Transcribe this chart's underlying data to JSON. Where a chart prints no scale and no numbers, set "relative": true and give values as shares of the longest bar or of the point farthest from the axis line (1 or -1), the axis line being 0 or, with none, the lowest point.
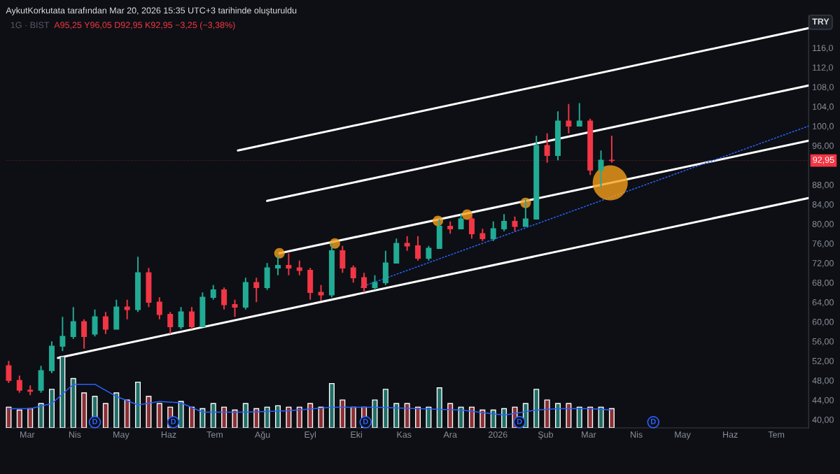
{
  "chart_data": [
    {
      "type": "candlestick",
      "title": "1G · BIST",
      "subtitle": "A95,25 Y96,05 D92,95 K92,95 −3,25 (−3,38%)",
      "annotations": [
        "AykutKorkutata tarafından Mar 20, 2026 15:35 UTC+3 tarihinde oluşturuldu",
        "TRY"
      ],
      "x": [
        "2025-02-17",
        "2025-02-24",
        "2025-03-03",
        "2025-03-10",
        "2025-03-17",
        "2025-03-24",
        "2025-03-31",
        "2025-04-07",
        "2025-04-14",
        "2025-04-21",
        "2025-04-28",
        "2025-05-05",
        "2025-05-12",
        "2025-05-19",
        "2025-05-26",
        "2025-06-02",
        "2025-06-09",
        "2025-06-16",
        "2025-06-23",
        "2025-06-30",
        "2025-07-07",
        "2025-07-14",
        "2025-07-21",
        "2025-07-28",
        "2025-08-04",
        "2025-08-11",
        "2025-08-18",
        "2025-08-25",
        "2025-09-01",
        "2025-09-08",
        "2025-09-15",
        "2025-09-22",
        "2025-09-29",
        "2025-10-06",
        "2025-10-13",
        "2025-10-20",
        "2025-10-27",
        "2025-11-03",
        "2025-11-10",
        "2025-11-17",
        "2025-11-24",
        "2025-12-01",
        "2025-12-08",
        "2025-12-15",
        "2025-12-22",
        "2025-12-29",
        "2026-01-05",
        "2026-01-12",
        "2026-01-19",
        "2026-01-26",
        "2026-02-02",
        "2026-02-09",
        "2026-02-16",
        "2026-02-23",
        "2026-03-02",
        "2026-03-09",
        "2026-03-16"
      ],
      "ohlc": [
        [
          51,
          52,
          47.5,
          48
        ],
        [
          48,
          49,
          45.5,
          46
        ],
        [
          46,
          47,
          45,
          45.8
        ],
        [
          46,
          51,
          45.5,
          50
        ],
        [
          50,
          56,
          49.5,
          55
        ],
        [
          55,
          61,
          54,
          57
        ],
        [
          57,
          63,
          56.5,
          60
        ],
        [
          60,
          60.5,
          54.5,
          57
        ],
        [
          57.5,
          62.5,
          57,
          61
        ],
        [
          61,
          62,
          57.5,
          58.5
        ],
        [
          58.5,
          64.5,
          58.5,
          63
        ],
        [
          63,
          64.5,
          60.5,
          62.5
        ],
        [
          62.5,
          73.3,
          62,
          70
        ],
        [
          70,
          71,
          63,
          64
        ],
        [
          64,
          65,
          60.5,
          61.5
        ],
        [
          61.5,
          62,
          57.5,
          59
        ],
        [
          59,
          63,
          58.5,
          62
        ],
        [
          62,
          63,
          58.5,
          59
        ],
        [
          59,
          66,
          59,
          65
        ],
        [
          65,
          67.5,
          64.5,
          66.5
        ],
        [
          66.5,
          67,
          62.5,
          63.5
        ],
        [
          63.5,
          64.5,
          61,
          63
        ],
        [
          63,
          69,
          62.5,
          68
        ],
        [
          68,
          69,
          64,
          67
        ],
        [
          67,
          72,
          66.5,
          71
        ],
        [
          71,
          73.5,
          69.5,
          71.5
        ],
        [
          71.5,
          74,
          69.5,
          71
        ],
        [
          71,
          72.5,
          69.5,
          70.5
        ],
        [
          70.5,
          71,
          64.5,
          66
        ],
        [
          66,
          67.5,
          64.3,
          65.5
        ],
        [
          65.5,
          76,
          65,
          74.5
        ],
        [
          74.5,
          75.5,
          70,
          71
        ],
        [
          71,
          71.5,
          68,
          69
        ],
        [
          69,
          70,
          66,
          67
        ],
        [
          67,
          69.5,
          66.5,
          68
        ],
        [
          68,
          74.5,
          67.5,
          72
        ],
        [
          72,
          77,
          72,
          76
        ],
        [
          76,
          77.5,
          74.5,
          75.5
        ],
        [
          75.5,
          77.5,
          72.5,
          73
        ],
        [
          73,
          75.5,
          72.5,
          75
        ],
        [
          75,
          81,
          75,
          79.5
        ],
        [
          79.5,
          80.5,
          78,
          79
        ],
        [
          79,
          82,
          79,
          81
        ],
        [
          81,
          81.5,
          77,
          78
        ],
        [
          78,
          79,
          76.5,
          77
        ],
        [
          77,
          80.5,
          76.5,
          79
        ],
        [
          79,
          82,
          78.5,
          80.5
        ],
        [
          80.5,
          81.5,
          78.5,
          79.5
        ],
        [
          79.5,
          85,
          79.5,
          81
        ],
        [
          81,
          98,
          81,
          96
        ],
        [
          96,
          98.5,
          92.5,
          94
        ],
        [
          94,
          103,
          93,
          101
        ],
        [
          101,
          104.5,
          98.5,
          100
        ],
        [
          100,
          104.7,
          100,
          101
        ],
        [
          101,
          101.5,
          90,
          91
        ],
        [
          91,
          95,
          87.5,
          93
        ],
        [
          93,
          98,
          92.5,
          92.95
        ]
      ],
      "colors": [
        "#f23645",
        "#f23645",
        "#f23645",
        "#22ab94",
        "#22ab94",
        "#22ab94",
        "#22ab94",
        "#f23645",
        "#22ab94",
        "#f23645",
        "#22ab94",
        "#f23645",
        "#22ab94",
        "#f23645",
        "#f23645",
        "#f23645",
        "#22ab94",
        "#f23645",
        "#22ab94",
        "#22ab94",
        "#f23645",
        "#f23645",
        "#22ab94",
        "#f23645",
        "#22ab94",
        "#22ab94",
        "#f23645",
        "#f23645",
        "#f23645",
        "#f23645",
        "#22ab94",
        "#f23645",
        "#f23645",
        "#f23645",
        "#22ab94",
        "#22ab94",
        "#22ab94",
        "#f23645",
        "#f23645",
        "#22ab94",
        "#22ab94",
        "#f23645",
        "#22ab94",
        "#f23645",
        "#f23645",
        "#22ab94",
        "#22ab94",
        "#f23645",
        "#22ab94",
        "#22ab94",
        "#f23645",
        "#22ab94",
        "#f23645",
        "#22ab94",
        "#f23645",
        "#22ab94",
        "#f23645"
      ],
      "series": [
        {
          "type": "line",
          "color": "#ffffff",
          "line_style": "solid",
          "x": [
            "2025-03-21",
            "2026-07-22"
          ],
          "values": [
            52.6,
            85.3
          ]
        },
        {
          "type": "line",
          "color": "#ffffff",
          "line_style": "solid",
          "x": [
            "2025-08-12",
            "2026-07-22"
          ],
          "values": [
            74.0,
            97.0
          ]
        },
        {
          "type": "line",
          "color": "#ffffff",
          "line_style": "solid",
          "x": [
            "2025-08-04",
            "2026-07-22"
          ],
          "values": [
            84.7,
            108.3
          ]
        },
        {
          "type": "line",
          "color": "#ffffff",
          "line_style": "solid",
          "x": [
            "2025-07-16",
            "2026-07-22"
          ],
          "values": [
            95.0,
            120.0
          ]
        },
        {
          "type": "line",
          "color": "#2962ff",
          "line_style": "dotted",
          "x": [
            "2025-10-04",
            "2026-07-22"
          ],
          "values": [
            67.1,
            100.0
          ]
        },
        {
          "type": "bubble",
          "color": "#f59f1a",
          "x": [
            "2025-08-12",
            "2025-09-17",
            "2025-11-23",
            "2025-12-12",
            "2026-01-19",
            "2026-03-15"
          ],
          "values": [
            74.0,
            76.0,
            80.6,
            81.9,
            84.3,
            88.4
          ],
          "sizes": [
            0.09,
            0.09,
            0.09,
            0.09,
            0.09,
            1
          ]
        }
      ],
      "ref_lines": [
        {
          "axis": "y",
          "value": 92.95,
          "label": "92,95",
          "color": "#f23645",
          "line_style": "dotted"
        }
      ],
      "xlim": [
        "2025-02-15",
        "2026-07-22"
      ],
      "ylim": [
        38.3,
        122.6
      ],
      "yticks": [
        {
          "value": 40,
          "label": "40,00"
        },
        {
          "value": 44,
          "label": "44,00"
        },
        {
          "value": 48,
          "label": "48,00"
        },
        {
          "value": 52,
          "label": "52,00"
        },
        {
          "value": 56,
          "label": "56,00"
        },
        {
          "value": 60,
          "label": "60,00"
        },
        {
          "value": 64,
          "label": "64,00"
        },
        {
          "value": 68,
          "label": "68,00"
        },
        {
          "value": 72,
          "label": "72,00"
        },
        {
          "value": 76,
          "label": "76,00"
        },
        {
          "value": 80,
          "label": "80,00"
        },
        {
          "value": 84,
          "label": "84,00"
        },
        {
          "value": 88,
          "label": "88,00"
        },
        {
          "value": 96,
          "label": "96,00"
        },
        {
          "value": 100,
          "label": "100,0"
        },
        {
          "value": 104,
          "label": "104,0"
        },
        {
          "value": 108,
          "label": "108,0"
        },
        {
          "value": 112,
          "label": "112,0"
        },
        {
          "value": 116,
          "label": "116,0"
        }
      ],
      "tick_labels": "y",
      "grid": false,
      "legend": false
    },
    {
      "type": "bar",
      "relative": true,
      "tick_labels": "x",
      "grid": false,
      "legend": false,
      "x": [
        "2025-02-17",
        "2025-02-24",
        "2025-03-03",
        "2025-03-10",
        "2025-03-17",
        "2025-03-24",
        "2025-03-31",
        "2025-04-07",
        "2025-04-14",
        "2025-04-21",
        "2025-04-28",
        "2025-05-05",
        "2025-05-12",
        "2025-05-19",
        "2025-05-26",
        "2025-06-02",
        "2025-06-09",
        "2025-06-16",
        "2025-06-23",
        "2025-06-30",
        "2025-07-07",
        "2025-07-14",
        "2025-07-21",
        "2025-07-28",
        "2025-08-04",
        "2025-08-11",
        "2025-08-18",
        "2025-08-25",
        "2025-09-01",
        "2025-09-08",
        "2025-09-15",
        "2025-09-22",
        "2025-09-29",
        "2025-10-06",
        "2025-10-13",
        "2025-10-20",
        "2025-10-27",
        "2025-11-03",
        "2025-11-10",
        "2025-11-17",
        "2025-11-24",
        "2025-12-01",
        "2025-12-08",
        "2025-12-15",
        "2025-12-22",
        "2025-12-29",
        "2026-01-05",
        "2026-01-12",
        "2026-01-19",
        "2026-01-26",
        "2026-02-02",
        "2026-02-09",
        "2026-02-16",
        "2026-02-23",
        "2026-03-02",
        "2026-03-09",
        "2026-03-16"
      ],
      "series": [
        {
          "type": "bar",
          "values": [
            0.29,
            0.25,
            0.27,
            0.34,
            0.54,
            1,
            0.69,
            0.49,
            0.44,
            0.34,
            0.49,
            0.39,
            0.64,
            0.44,
            0.34,
            0.29,
            0.37,
            0.29,
            0.27,
            0.34,
            0.29,
            0.25,
            0.34,
            0.27,
            0.29,
            0.31,
            0.29,
            0.29,
            0.34,
            0.29,
            0.62,
            0.39,
            0.29,
            0.29,
            0.39,
            0.54,
            0.34,
            0.34,
            0.29,
            0.29,
            0.56,
            0.34,
            0.29,
            0.29,
            0.25,
            0.25,
            0.27,
            0.29,
            0.34,
            0.54,
            0.39,
            0.34,
            0.34,
            0.29,
            0.29,
            0.29,
            0.27
          ],
          "colors": [
            "#8c2f34",
            "#8c2f34",
            "#8c2f34",
            "#1f6f66",
            "#1f6f66",
            "#1f6f66",
            "#1f6f66",
            "#8c2f34",
            "#1f6f66",
            "#8c2f34",
            "#1f6f66",
            "#8c2f34",
            "#1f6f66",
            "#8c2f34",
            "#8c2f34",
            "#8c2f34",
            "#1f6f66",
            "#8c2f34",
            "#1f6f66",
            "#1f6f66",
            "#8c2f34",
            "#8c2f34",
            "#1f6f66",
            "#8c2f34",
            "#1f6f66",
            "#1f6f66",
            "#8c2f34",
            "#8c2f34",
            "#8c2f34",
            "#8c2f34",
            "#1f6f66",
            "#8c2f34",
            "#8c2f34",
            "#8c2f34",
            "#1f6f66",
            "#1f6f66",
            "#1f6f66",
            "#8c2f34",
            "#8c2f34",
            "#1f6f66",
            "#1f6f66",
            "#8c2f34",
            "#1f6f66",
            "#8c2f34",
            "#8c2f34",
            "#1f6f66",
            "#1f6f66",
            "#8c2f34",
            "#1f6f66",
            "#1f6f66",
            "#8c2f34",
            "#1f6f66",
            "#8c2f34",
            "#1f6f66",
            "#8c2f34",
            "#1f6f66",
            "#8c2f34"
          ]
        },
        {
          "type": "line",
          "color": "#2962ff",
          "x": [
            "2025-02-17",
            "2025-03-03",
            "2025-03-17",
            "2025-03-31",
            "2025-04-14",
            "2025-04-28",
            "2025-05-12",
            "2025-05-26",
            "2025-06-09",
            "2025-06-23",
            "2025-07-21",
            "2025-08-18",
            "2025-09-15",
            "2025-10-13",
            "2025-11-10",
            "2025-12-08",
            "2026-01-05",
            "2026-01-26",
            "2026-02-09",
            "2026-03-02",
            "2026-03-16"
          ],
          "values": [
            0.27,
            0.27,
            0.34,
            0.61,
            0.61,
            0.44,
            0.32,
            0.37,
            0.35,
            0.22,
            0.22,
            0.24,
            0.29,
            0.29,
            0.27,
            0.25,
            0.18,
            0.25,
            0.27,
            0.27,
            0.25
          ]
        }
      ],
      "annotations": [
        {
          "text": "D",
          "x": "2025-04-14",
          "y": 0.08
        },
        {
          "text": "D",
          "x": "2025-06-04",
          "y": 0.08
        },
        {
          "text": "D",
          "x": "2025-10-07",
          "y": 0.08
        },
        {
          "text": "D",
          "x": "2026-01-15",
          "y": 0.08
        },
        {
          "text": "D",
          "x": "2026-04-12",
          "y": 0.08
        }
      ],
      "xlim": [
        "2025-02-15",
        "2026-07-22"
      ],
      "xticks": [
        {
          "value": "2025-03-01",
          "label": "Mar"
        },
        {
          "value": "2025-04-01",
          "label": "Nis"
        },
        {
          "value": "2025-05-01",
          "label": "May"
        },
        {
          "value": "2025-06-01",
          "label": "Haz"
        },
        {
          "value": "2025-07-01",
          "label": "Tem"
        },
        {
          "value": "2025-08-01",
          "label": "Ağu"
        },
        {
          "value": "2025-09-01",
          "label": "Eyl"
        },
        {
          "value": "2025-10-01",
          "label": "Eki"
        },
        {
          "value": "2025-11-01",
          "label": "Kas"
        },
        {
          "value": "2025-12-01",
          "label": "Ara"
        },
        {
          "value": "2026-01-01",
          "label": "2026"
        },
        {
          "value": "2026-02-01",
          "label": "Şub"
        },
        {
          "value": "2026-03-01",
          "label": "Mar"
        },
        {
          "value": "2026-04-01",
          "label": "Nis"
        },
        {
          "value": "2026-05-01",
          "label": "May"
        },
        {
          "value": "2026-06-01",
          "label": "Haz"
        },
        {
          "value": "2026-07-01",
          "label": "Tem"
        }
      ]
    }
  ]
}
